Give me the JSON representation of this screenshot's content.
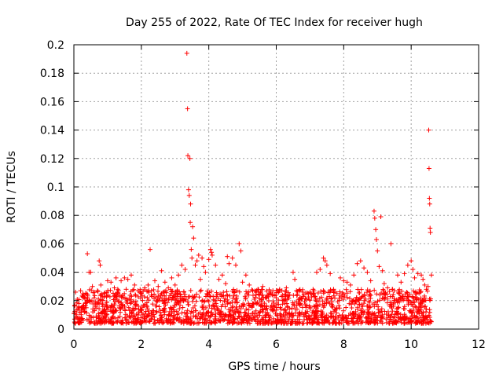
{
  "chart_data": {
    "type": "scatter",
    "title": "Day 255 of 2022, Rate Of TEC Index for receiver hugh",
    "xlabel": "GPS time / hours",
    "ylabel": "ROTI / TECUs",
    "xlim": [
      0,
      12
    ],
    "ylim": [
      0,
      0.2
    ],
    "x_ticks": [
      0,
      2,
      4,
      6,
      8,
      10,
      12
    ],
    "y_ticks": [
      0,
      0.02,
      0.04,
      0.06,
      0.08,
      0.1,
      0.12,
      0.14,
      0.16,
      0.18,
      0.2
    ],
    "x_tick_labels": [
      "0",
      "2",
      "4",
      "6",
      "8",
      "10",
      "12"
    ],
    "y_tick_labels": [
      "0",
      "0.02",
      "0.04",
      "0.06",
      "0.08",
      "0.1",
      "0.12",
      "0.14",
      "0.16",
      "0.18",
      "0.2"
    ],
    "grid": true,
    "marker": "+",
    "color": "#ff0000",
    "points": [
      [
        0.05,
        0.026
      ],
      [
        0.1,
        0.021
      ],
      [
        0.15,
        0.018
      ],
      [
        0.2,
        0.027
      ],
      [
        0.25,
        0.015
      ],
      [
        0.3,
        0.024
      ],
      [
        0.4,
        0.053
      ],
      [
        0.45,
        0.04
      ],
      [
        0.5,
        0.04
      ],
      [
        0.55,
        0.03
      ],
      [
        0.6,
        0.022
      ],
      [
        0.7,
        0.027
      ],
      [
        0.75,
        0.048
      ],
      [
        0.78,
        0.045
      ],
      [
        0.8,
        0.031
      ],
      [
        0.9,
        0.025
      ],
      [
        1.0,
        0.034
      ],
      [
        1.1,
        0.033
      ],
      [
        1.2,
        0.029
      ],
      [
        1.25,
        0.036
      ],
      [
        1.3,
        0.028
      ],
      [
        1.4,
        0.034
      ],
      [
        1.5,
        0.036
      ],
      [
        1.55,
        0.028
      ],
      [
        1.6,
        0.035
      ],
      [
        1.7,
        0.038
      ],
      [
        1.8,
        0.031
      ],
      [
        1.9,
        0.027
      ],
      [
        2.0,
        0.025
      ],
      [
        2.1,
        0.029
      ],
      [
        2.2,
        0.031
      ],
      [
        2.26,
        0.056
      ],
      [
        2.3,
        0.027
      ],
      [
        2.4,
        0.034
      ],
      [
        2.5,
        0.03
      ],
      [
        2.6,
        0.041
      ],
      [
        2.7,
        0.033
      ],
      [
        2.8,
        0.029
      ],
      [
        2.9,
        0.036
      ],
      [
        3.0,
        0.031
      ],
      [
        3.1,
        0.038
      ],
      [
        3.2,
        0.045
      ],
      [
        3.3,
        0.042
      ],
      [
        3.35,
        0.194
      ],
      [
        3.37,
        0.155
      ],
      [
        3.38,
        0.122
      ],
      [
        3.4,
        0.098
      ],
      [
        3.42,
        0.094
      ],
      [
        3.44,
        0.12
      ],
      [
        3.45,
        0.075
      ],
      [
        3.46,
        0.088
      ],
      [
        3.48,
        0.056
      ],
      [
        3.5,
        0.05
      ],
      [
        3.52,
        0.072
      ],
      [
        3.55,
        0.064
      ],
      [
        3.6,
        0.045
      ],
      [
        3.65,
        0.048
      ],
      [
        3.7,
        0.052
      ],
      [
        3.75,
        0.035
      ],
      [
        3.8,
        0.05
      ],
      [
        3.85,
        0.044
      ],
      [
        3.9,
        0.04
      ],
      [
        4.0,
        0.049
      ],
      [
        4.05,
        0.056
      ],
      [
        4.08,
        0.054
      ],
      [
        4.1,
        0.052
      ],
      [
        4.2,
        0.045
      ],
      [
        4.3,
        0.035
      ],
      [
        4.4,
        0.038
      ],
      [
        4.5,
        0.032
      ],
      [
        4.55,
        0.051
      ],
      [
        4.6,
        0.046
      ],
      [
        4.7,
        0.05
      ],
      [
        4.8,
        0.045
      ],
      [
        4.9,
        0.06
      ],
      [
        4.95,
        0.055
      ],
      [
        5.0,
        0.033
      ],
      [
        5.1,
        0.038
      ],
      [
        5.2,
        0.031
      ],
      [
        5.3,
        0.027
      ],
      [
        5.4,
        0.026
      ],
      [
        5.5,
        0.024
      ],
      [
        5.6,
        0.03
      ],
      [
        5.7,
        0.022
      ],
      [
        5.8,
        0.025
      ],
      [
        5.9,
        0.027
      ],
      [
        6.0,
        0.022
      ],
      [
        6.1,
        0.028
      ],
      [
        6.2,
        0.02
      ],
      [
        6.3,
        0.029
      ],
      [
        6.4,
        0.024
      ],
      [
        6.5,
        0.04
      ],
      [
        6.55,
        0.035
      ],
      [
        6.6,
        0.027
      ],
      [
        6.7,
        0.022
      ],
      [
        6.8,
        0.023
      ],
      [
        6.9,
        0.021
      ],
      [
        7.0,
        0.026
      ],
      [
        7.1,
        0.025
      ],
      [
        7.2,
        0.04
      ],
      [
        7.3,
        0.042
      ],
      [
        7.4,
        0.05
      ],
      [
        7.45,
        0.048
      ],
      [
        7.5,
        0.045
      ],
      [
        7.6,
        0.039
      ],
      [
        7.7,
        0.028
      ],
      [
        7.8,
        0.025
      ],
      [
        7.9,
        0.036
      ],
      [
        8.0,
        0.034
      ],
      [
        8.1,
        0.033
      ],
      [
        8.2,
        0.031
      ],
      [
        8.3,
        0.038
      ],
      [
        8.4,
        0.046
      ],
      [
        8.5,
        0.048
      ],
      [
        8.6,
        0.043
      ],
      [
        8.7,
        0.04
      ],
      [
        8.8,
        0.034
      ],
      [
        8.9,
        0.083
      ],
      [
        8.92,
        0.078
      ],
      [
        8.95,
        0.07
      ],
      [
        8.97,
        0.063
      ],
      [
        9.0,
        0.055
      ],
      [
        9.05,
        0.044
      ],
      [
        9.1,
        0.079
      ],
      [
        9.15,
        0.041
      ],
      [
        9.2,
        0.032
      ],
      [
        9.3,
        0.029
      ],
      [
        9.4,
        0.06
      ],
      [
        9.45,
        0.028
      ],
      [
        9.5,
        0.027
      ],
      [
        9.6,
        0.038
      ],
      [
        9.7,
        0.033
      ],
      [
        9.8,
        0.039
      ],
      [
        9.9,
        0.045
      ],
      [
        10.0,
        0.048
      ],
      [
        10.05,
        0.042
      ],
      [
        10.1,
        0.036
      ],
      [
        10.2,
        0.039
      ],
      [
        10.3,
        0.038
      ],
      [
        10.35,
        0.035
      ],
      [
        10.4,
        0.031
      ],
      [
        10.45,
        0.028
      ],
      [
        10.5,
        0.03
      ],
      [
        10.52,
        0.14
      ],
      [
        10.53,
        0.113
      ],
      [
        10.54,
        0.092
      ],
      [
        10.55,
        0.088
      ],
      [
        10.56,
        0.071
      ],
      [
        10.57,
        0.068
      ],
      [
        10.6,
        0.038
      ]
    ],
    "bulk_band": {
      "x_range": [
        0,
        10.6
      ],
      "y_min": 0.004,
      "y_max": 0.028,
      "description_values_only": true
    }
  }
}
